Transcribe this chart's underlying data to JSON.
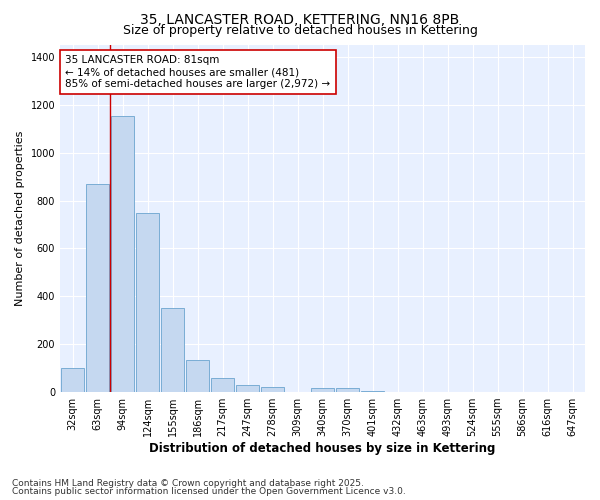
{
  "title_line1": "35, LANCASTER ROAD, KETTERING, NN16 8PB",
  "title_line2": "Size of property relative to detached houses in Kettering",
  "xlabel": "Distribution of detached houses by size in Kettering",
  "ylabel": "Number of detached properties",
  "categories": [
    "32sqm",
    "63sqm",
    "94sqm",
    "124sqm",
    "155sqm",
    "186sqm",
    "217sqm",
    "247sqm",
    "278sqm",
    "309sqm",
    "340sqm",
    "370sqm",
    "401sqm",
    "432sqm",
    "463sqm",
    "493sqm",
    "524sqm",
    "555sqm",
    "586sqm",
    "616sqm",
    "647sqm"
  ],
  "values": [
    100,
    870,
    1155,
    750,
    350,
    135,
    60,
    30,
    20,
    0,
    15,
    15,
    3,
    0,
    0,
    0,
    0,
    0,
    0,
    0,
    0
  ],
  "bar_color": "#c5d8f0",
  "bar_edge_color": "#7aadd4",
  "fig_bg_color": "#ffffff",
  "plot_bg_color": "#e8f0ff",
  "grid_color": "#ffffff",
  "annotation_text": "35 LANCASTER ROAD: 81sqm\n← 14% of detached houses are smaller (481)\n85% of semi-detached houses are larger (2,972) →",
  "annotation_facecolor": "#ffffff",
  "annotation_edgecolor": "#cc0000",
  "vline_x": 1.5,
  "vline_color": "#cc0000",
  "ylim": [
    0,
    1450
  ],
  "yticks": [
    0,
    200,
    400,
    600,
    800,
    1000,
    1200,
    1400
  ],
  "footnote_line1": "Contains HM Land Registry data © Crown copyright and database right 2025.",
  "footnote_line2": "Contains public sector information licensed under the Open Government Licence v3.0.",
  "title_fontsize": 10,
  "subtitle_fontsize": 9,
  "axis_label_fontsize": 8.5,
  "tick_fontsize": 7,
  "annotation_fontsize": 7.5,
  "footnote_fontsize": 6.5,
  "ylabel_fontsize": 8
}
